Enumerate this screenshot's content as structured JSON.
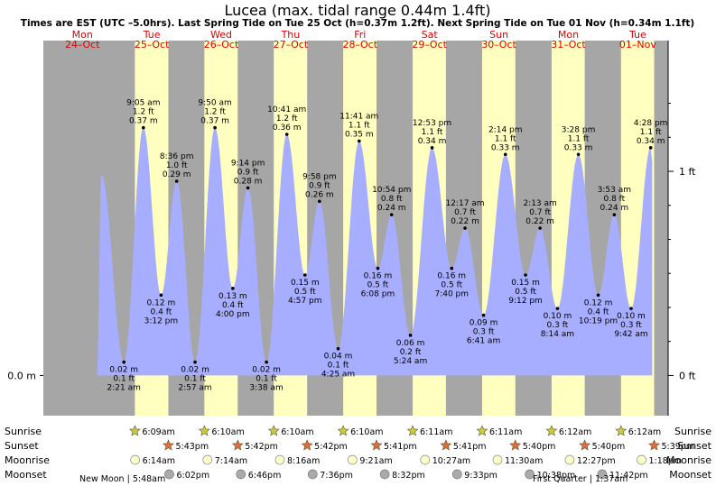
{
  "title": "Lucea (max. tidal range 0.44m 1.4ft)",
  "subtitle": "Times are EST (UTC –5.0hrs). Last Spring Tide on Tue 25 Oct (h=0.37m 1.2ft). Next Spring Tide on Tue 01 Nov (h=0.34m 1.1ft)",
  "chart_data": {
    "type": "area",
    "colors": {
      "water": "#a7aeff",
      "day": "#ffffc0",
      "night": "#a6a6a6",
      "day_labels": "#e00000",
      "sun": "#cccc33",
      "sunset": "#e07030"
    },
    "x_range_hours": [
      -1.5,
      214.5
    ],
    "y_range_m": [
      -0.06,
      0.5
    ],
    "days": [
      {
        "name": "Mon",
        "date": "24–Oct"
      },
      {
        "name": "Tue",
        "date": "25–Oct"
      },
      {
        "name": "Wed",
        "date": "26–Oct"
      },
      {
        "name": "Thu",
        "date": "27–Oct"
      },
      {
        "name": "Fri",
        "date": "28–Oct"
      },
      {
        "name": "Sat",
        "date": "29–Oct"
      },
      {
        "name": "Sun",
        "date": "30–Oct"
      },
      {
        "name": "Mon",
        "date": "31–Oct"
      },
      {
        "name": "Tue",
        "date": "01–Nov"
      }
    ],
    "left_axis": [
      {
        "label": "0.0 m",
        "value_m": 0.0
      }
    ],
    "right_axis": [
      {
        "label": "1 ft",
        "value_m": 0.3048
      },
      {
        "label": "0 ft",
        "value_m": 0.0
      }
    ],
    "extremes": [
      {
        "day": 1,
        "time": "2:21 am",
        "m": 0.02,
        "m_label": "0.02 m",
        "ft": "0.1 ft",
        "type": "low"
      },
      {
        "day": 1,
        "time": "9:05 am",
        "m": 0.37,
        "m_label": "0.37 m",
        "ft": "1.2 ft",
        "type": "high"
      },
      {
        "day": 1,
        "time": "3:12 pm",
        "m": 0.12,
        "m_label": "0.12 m",
        "ft": "0.4 ft",
        "type": "low"
      },
      {
        "day": 1,
        "time": "8:36 pm",
        "m": 0.29,
        "m_label": "0.29 m",
        "ft": "1.0 ft",
        "type": "high"
      },
      {
        "day": 2,
        "time": "2:57 am",
        "m": 0.02,
        "m_label": "0.02 m",
        "ft": "0.1 ft",
        "type": "low"
      },
      {
        "day": 2,
        "time": "9:50 am",
        "m": 0.37,
        "m_label": "0.37 m",
        "ft": "1.2 ft",
        "type": "high"
      },
      {
        "day": 2,
        "time": "4:00 pm",
        "m": 0.13,
        "m_label": "0.13 m",
        "ft": "0.4 ft",
        "type": "low"
      },
      {
        "day": 2,
        "time": "9:14 pm",
        "m": 0.28,
        "m_label": "0.28 m",
        "ft": "0.9 ft",
        "type": "high"
      },
      {
        "day": 3,
        "time": "3:38 am",
        "m": 0.02,
        "m_label": "0.02 m",
        "ft": "0.1 ft",
        "type": "low"
      },
      {
        "day": 3,
        "time": "10:41 am",
        "m": 0.36,
        "m_label": "0.36 m",
        "ft": "1.2 ft",
        "type": "high"
      },
      {
        "day": 3,
        "time": "4:57 pm",
        "m": 0.15,
        "m_label": "0.15 m",
        "ft": "0.5 ft",
        "type": "low"
      },
      {
        "day": 3,
        "time": "9:58 pm",
        "m": 0.26,
        "m_label": "0.26 m",
        "ft": "0.9 ft",
        "type": "high"
      },
      {
        "day": 4,
        "time": "4:25 am",
        "m": 0.04,
        "m_label": "0.04 m",
        "ft": "0.1 ft",
        "type": "low"
      },
      {
        "day": 4,
        "time": "11:41 am",
        "m": 0.35,
        "m_label": "0.35 m",
        "ft": "1.1 ft",
        "type": "high"
      },
      {
        "day": 4,
        "time": "6:08 pm",
        "m": 0.16,
        "m_label": "0.16 m",
        "ft": "0.5 ft",
        "type": "low"
      },
      {
        "day": 4,
        "time": "10:54 pm",
        "m": 0.24,
        "m_label": "0.24 m",
        "ft": "0.8 ft",
        "type": "high"
      },
      {
        "day": 5,
        "time": "5:24 am",
        "m": 0.06,
        "m_label": "0.06 m",
        "ft": "0.2 ft",
        "type": "low"
      },
      {
        "day": 5,
        "time": "12:53 pm",
        "m": 0.34,
        "m_label": "0.34 m",
        "ft": "1.1 ft",
        "type": "high"
      },
      {
        "day": 5,
        "time": "7:40 pm",
        "m": 0.16,
        "m_label": "0.16 m",
        "ft": "0.5 ft",
        "type": "low"
      },
      {
        "day": 6,
        "time": "12:17 am",
        "m": 0.22,
        "m_label": "0.22 m",
        "ft": "0.7 ft",
        "type": "high"
      },
      {
        "day": 6,
        "time": "6:41 am",
        "m": 0.09,
        "m_label": "0.09 m",
        "ft": "0.3 ft",
        "type": "low"
      },
      {
        "day": 6,
        "time": "2:14 pm",
        "m": 0.33,
        "m_label": "0.33 m",
        "ft": "1.1 ft",
        "type": "high"
      },
      {
        "day": 6,
        "time": "9:12 pm",
        "m": 0.15,
        "m_label": "0.15 m",
        "ft": "0.5 ft",
        "type": "low"
      },
      {
        "day": 7,
        "time": "2:13 am",
        "m": 0.22,
        "m_label": "0.22 m",
        "ft": "0.7 ft",
        "type": "high"
      },
      {
        "day": 7,
        "time": "8:14 am",
        "m": 0.1,
        "m_label": "0.10 m",
        "ft": "0.3 ft",
        "type": "low"
      },
      {
        "day": 7,
        "time": "3:28 pm",
        "m": 0.33,
        "m_label": "0.33 m",
        "ft": "1.1 ft",
        "type": "high"
      },
      {
        "day": 7,
        "time": "10:19 pm",
        "m": 0.12,
        "m_label": "0.12 m",
        "ft": "0.4 ft",
        "type": "low"
      },
      {
        "day": 8,
        "time": "3:53 am",
        "m": 0.24,
        "m_label": "0.24 m",
        "ft": "0.8 ft",
        "type": "high"
      },
      {
        "day": 8,
        "time": "9:42 am",
        "m": 0.1,
        "m_label": "0.10 m",
        "ft": "0.3 ft",
        "type": "low"
      },
      {
        "day": 8,
        "time": "4:28 pm",
        "m": 0.34,
        "m_label": "0.34 m",
        "ft": "1.1 ft",
        "type": "high"
      }
    ],
    "sunrise": [
      "6:09am",
      "6:10am",
      "6:10am",
      "6:10am",
      "6:11am",
      "6:11am",
      "6:12am",
      "6:12am"
    ],
    "sunset": [
      "5:43pm",
      "5:42pm",
      "5:42pm",
      "5:41pm",
      "5:41pm",
      "5:40pm",
      "5:40pm",
      "5:39pm"
    ],
    "moonrise": [
      "6:14am",
      "7:14am",
      "8:16am",
      "9:21am",
      "10:27am",
      "11:30am",
      "12:27pm",
      "1:18pm"
    ],
    "moonset": [
      "6:02pm",
      "6:46pm",
      "7:36pm",
      "8:32pm",
      "9:33pm",
      "10:38pm",
      "11:42pm"
    ],
    "row_labels": [
      "Sunrise",
      "Sunset",
      "Moonrise",
      "Moonset"
    ],
    "moon_phases": [
      {
        "text": "New Moon | 5:48am"
      },
      {
        "text": "First Quarter | 1:37am"
      }
    ]
  }
}
